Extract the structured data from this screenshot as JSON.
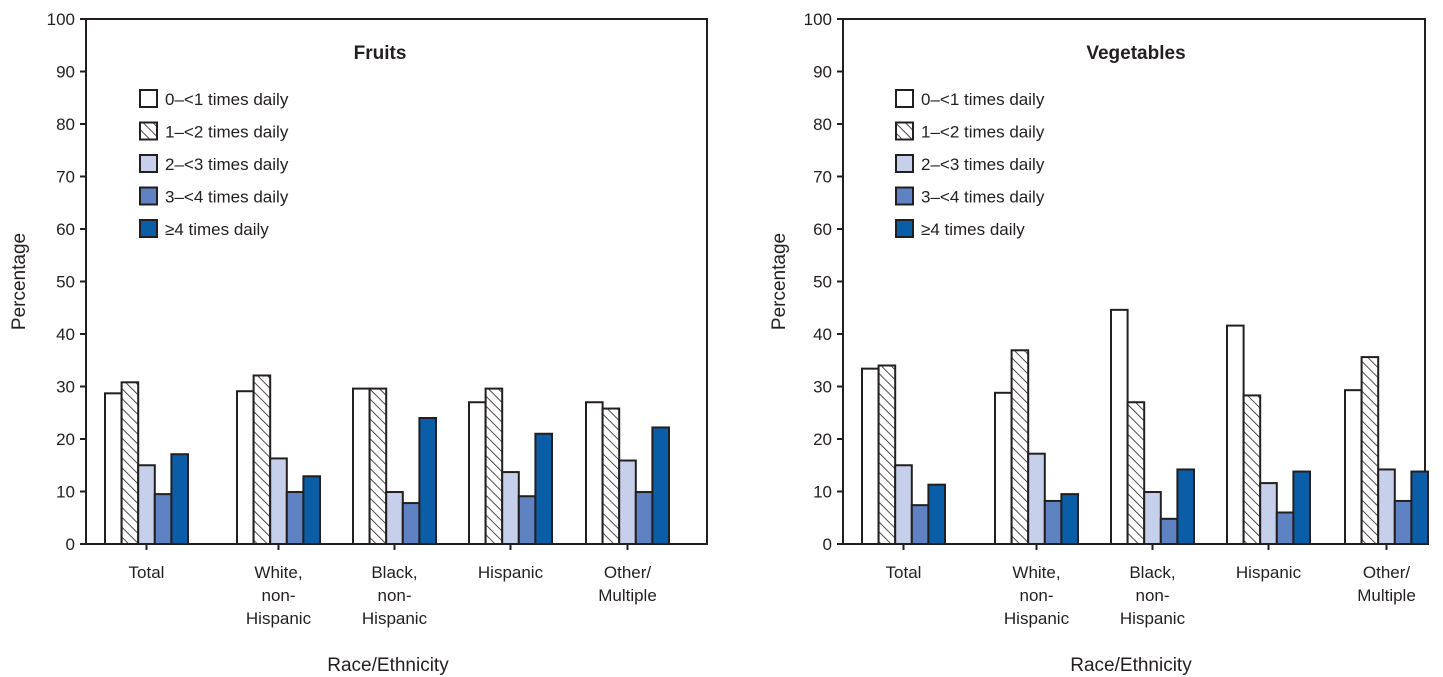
{
  "palette": {
    "white": "#ffffff",
    "hatch_line": "#231f20",
    "light_blue": "#c6d0ea",
    "medium_blue": "#5e82c2",
    "dark_blue": "#0a5ea8",
    "stroke": "#231f20"
  },
  "chart_data": [
    {
      "type": "bar",
      "title": "Fruits",
      "xlabel": "Race/Ethnicity",
      "ylabel": "Percentage",
      "ylim": [
        0,
        100
      ],
      "yticks": [
        0,
        10,
        20,
        30,
        40,
        50,
        60,
        70,
        80,
        90,
        100
      ],
      "legend_position": "top-left",
      "categories": [
        [
          "Total"
        ],
        [
          "White,",
          "non-",
          "Hispanic"
        ],
        [
          "Black,",
          "non-",
          "Hispanic"
        ],
        [
          "Hispanic"
        ],
        [
          "Other/",
          "Multiple"
        ]
      ],
      "series": [
        {
          "name": "0–<1 times daily",
          "style": "white",
          "values": [
            28.7,
            29.1,
            29.6,
            27.0,
            27.0
          ]
        },
        {
          "name": "1–<2 times daily",
          "style": "hatch",
          "values": [
            30.8,
            32.1,
            29.6,
            29.6,
            25.8
          ]
        },
        {
          "name": "2–<3 times daily",
          "style": "light_blue",
          "values": [
            15.0,
            16.3,
            9.9,
            13.7,
            15.9
          ]
        },
        {
          "name": "3–<4 times daily",
          "style": "medium_blue",
          "values": [
            9.5,
            9.9,
            7.8,
            9.1,
            9.9
          ]
        },
        {
          "name": "≥4 times daily",
          "style": "dark_blue",
          "values": [
            17.1,
            12.9,
            24.0,
            21.0,
            22.2
          ]
        }
      ]
    },
    {
      "type": "bar",
      "title": "Vegetables",
      "xlabel": "Race/Ethnicity",
      "ylabel": "Percentage",
      "ylim": [
        0,
        100
      ],
      "yticks": [
        0,
        10,
        20,
        30,
        40,
        50,
        60,
        70,
        80,
        90,
        100
      ],
      "legend_position": "top-left",
      "categories": [
        [
          "Total"
        ],
        [
          "White,",
          "non-",
          "Hispanic"
        ],
        [
          "Black,",
          "non-",
          "Hispanic"
        ],
        [
          "Hispanic"
        ],
        [
          "Other/",
          "Multiple"
        ]
      ],
      "series": [
        {
          "name": "0–<1 times daily",
          "style": "white",
          "values": [
            33.4,
            28.8,
            44.6,
            41.6,
            29.3
          ]
        },
        {
          "name": "1–<2 times daily",
          "style": "hatch",
          "values": [
            34.0,
            36.9,
            27.0,
            28.3,
            35.6
          ]
        },
        {
          "name": "2–<3 times daily",
          "style": "light_blue",
          "values": [
            15.0,
            17.2,
            9.9,
            11.6,
            14.2
          ]
        },
        {
          "name": "3–<4 times daily",
          "style": "medium_blue",
          "values": [
            7.4,
            8.2,
            4.8,
            6.0,
            8.2
          ]
        },
        {
          "name": "≥4 times daily",
          "style": "dark_blue",
          "values": [
            11.3,
            9.5,
            14.2,
            13.8,
            13.8
          ]
        }
      ]
    }
  ]
}
